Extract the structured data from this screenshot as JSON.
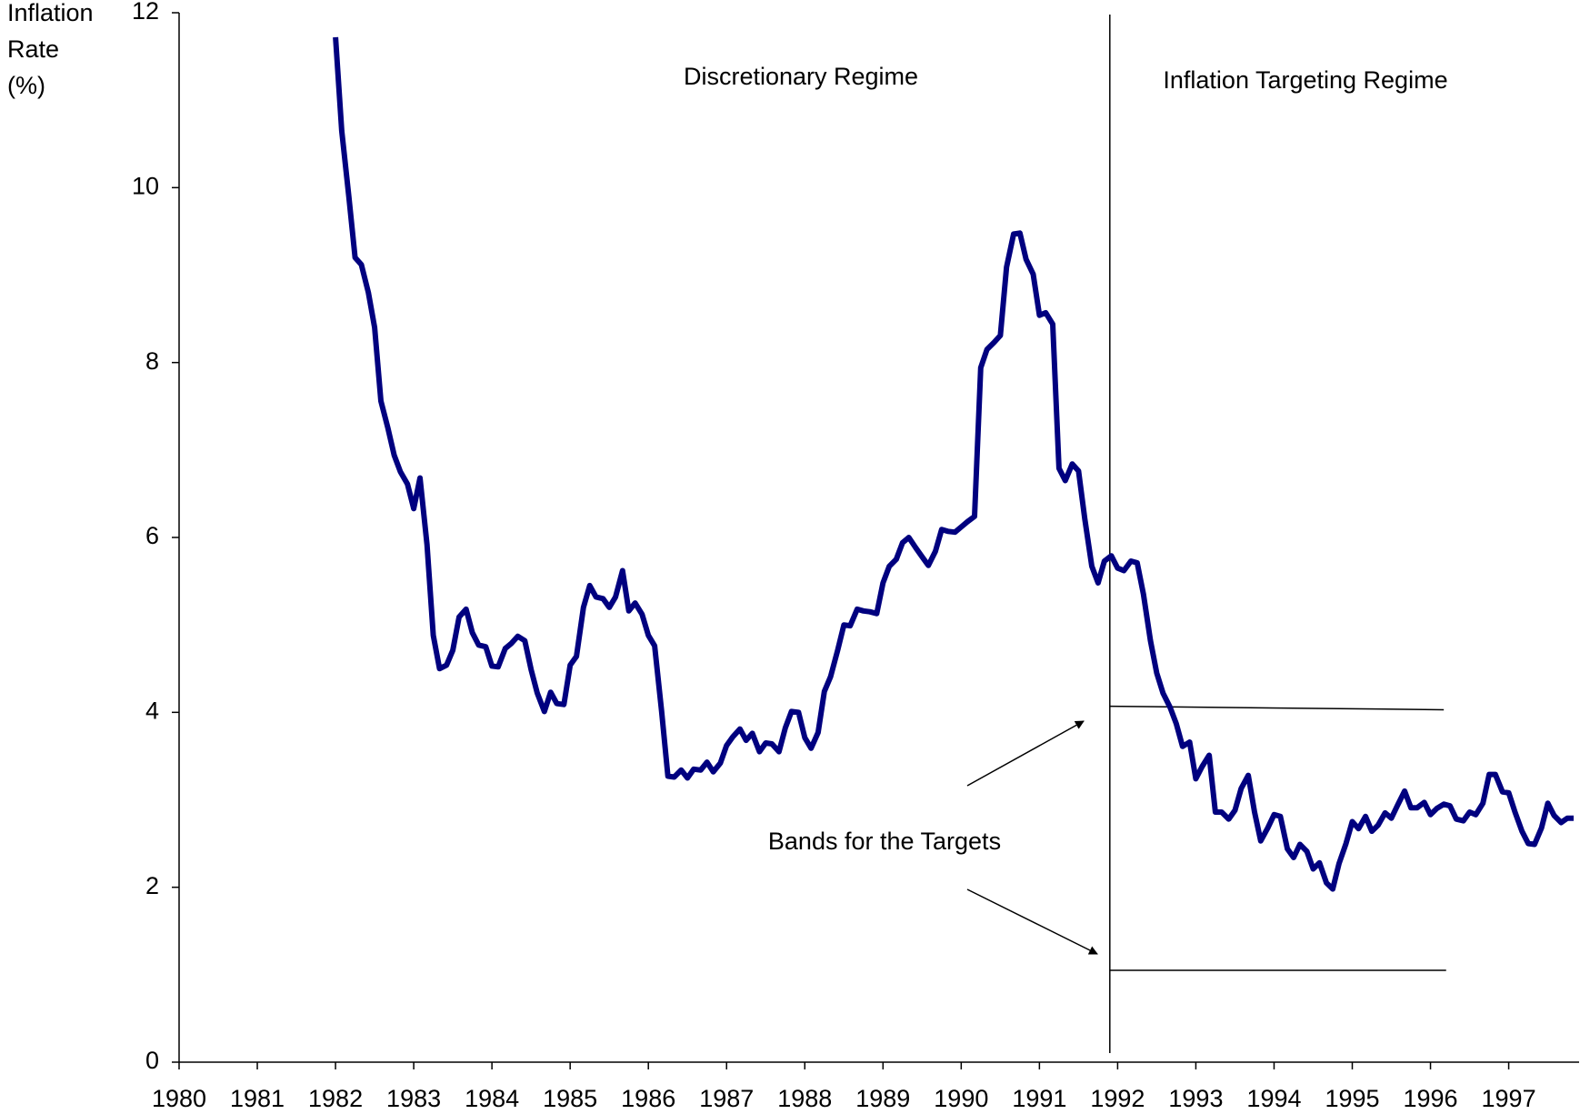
{
  "chart_data": {
    "type": "line",
    "y_label": [
      "Inflation",
      "Rate",
      "(%)"
    ],
    "annotations": [
      "Discretionary Regime",
      "Inflation Targeting Regime",
      "Bands for the Targets"
    ],
    "xlim": [
      1980,
      1997.9
    ],
    "xticks": [
      1980,
      1981,
      1982,
      1983,
      1984,
      1985,
      1986,
      1987,
      1988,
      1989,
      1990,
      1991,
      1992,
      1993,
      1994,
      1995,
      1996,
      1997
    ],
    "ylim": [
      0,
      12
    ],
    "yticks": [
      0,
      2,
      4,
      6,
      8,
      10,
      12
    ],
    "grid": false,
    "regime_break": 1991.9,
    "bands": [
      {
        "x": [
          1991.9,
          1996.17
        ],
        "values": [
          4.07,
          4.03
        ]
      },
      {
        "x": [
          1991.9,
          1996.2
        ],
        "values": [
          1.05,
          1.05
        ]
      }
    ],
    "x": [
      1982.0,
      1982.08,
      1982.17,
      1982.25,
      1982.33,
      1982.42,
      1982.5,
      1982.58,
      1982.67,
      1982.75,
      1982.83,
      1982.92,
      1983.0,
      1983.08,
      1983.17,
      1983.25,
      1983.33,
      1983.42,
      1983.5,
      1983.58,
      1983.67,
      1983.75,
      1983.83,
      1983.92,
      1984.0,
      1984.08,
      1984.17,
      1984.25,
      1984.33,
      1984.42,
      1984.5,
      1984.58,
      1984.67,
      1984.75,
      1984.83,
      1984.92,
      1985.0,
      1985.08,
      1985.17,
      1985.25,
      1985.33,
      1985.42,
      1985.5,
      1985.58,
      1985.67,
      1985.75,
      1985.83,
      1985.92,
      1986.0,
      1986.08,
      1986.17,
      1986.25,
      1986.33,
      1986.42,
      1986.5,
      1986.58,
      1986.67,
      1986.75,
      1986.83,
      1986.92,
      1987.0,
      1987.08,
      1987.17,
      1987.25,
      1987.33,
      1987.42,
      1987.5,
      1987.58,
      1987.67,
      1987.75,
      1987.83,
      1987.92,
      1988.0,
      1988.08,
      1988.17,
      1988.25,
      1988.33,
      1988.42,
      1988.5,
      1988.58,
      1988.67,
      1988.75,
      1988.83,
      1988.92,
      1989.0,
      1989.08,
      1989.17,
      1989.25,
      1989.33,
      1989.42,
      1989.5,
      1989.58,
      1989.67,
      1989.75,
      1989.83,
      1989.92,
      1990.0,
      1990.08,
      1990.17,
      1990.25,
      1990.33,
      1990.42,
      1990.5,
      1990.58,
      1990.67,
      1990.75,
      1990.83,
      1990.92,
      1991.0,
      1991.08,
      1991.17,
      1991.25,
      1991.33,
      1991.42,
      1991.5,
      1991.58,
      1991.67,
      1991.75,
      1991.83,
      1991.92,
      1992.0,
      1992.08,
      1992.17,
      1992.25,
      1992.33,
      1992.42,
      1992.5,
      1992.58,
      1992.67,
      1992.75,
      1992.83,
      1992.92,
      1993.0,
      1993.08,
      1993.17,
      1993.25,
      1993.33,
      1993.42,
      1993.5,
      1993.58,
      1993.67,
      1993.75,
      1993.83,
      1993.92,
      1994.0,
      1994.08,
      1994.17,
      1994.25,
      1994.33,
      1994.42,
      1994.5,
      1994.58,
      1994.67,
      1994.75,
      1994.83,
      1994.92,
      1995.0,
      1995.08,
      1995.17,
      1995.25,
      1995.33,
      1995.42,
      1995.5,
      1995.58,
      1995.67,
      1995.75,
      1995.83,
      1995.92,
      1996.0,
      1996.08,
      1996.17,
      1996.25,
      1996.33,
      1996.42,
      1996.5,
      1996.58,
      1996.67,
      1996.75,
      1996.83,
      1996.92,
      1997.0,
      1997.08,
      1997.17,
      1997.25,
      1997.33,
      1997.42,
      1997.5,
      1997.58,
      1997.67,
      1997.75,
      1997.83
    ],
    "series": [
      {
        "color": "#00007f",
        "values": [
          11.72,
          10.65,
          9.9,
          9.2,
          9.12,
          8.8,
          8.4,
          7.56,
          7.25,
          6.94,
          6.75,
          6.61,
          6.33,
          6.68,
          5.92,
          4.88,
          4.5,
          4.54,
          4.71,
          5.09,
          5.18,
          4.91,
          4.77,
          4.75,
          4.53,
          4.52,
          4.73,
          4.79,
          4.87,
          4.82,
          4.49,
          4.22,
          4.01,
          4.23,
          4.1,
          4.09,
          4.54,
          4.64,
          5.2,
          5.45,
          5.32,
          5.3,
          5.2,
          5.32,
          5.62,
          5.16,
          5.25,
          5.12,
          4.88,
          4.76,
          4.01,
          3.27,
          3.26,
          3.34,
          3.25,
          3.35,
          3.34,
          3.43,
          3.32,
          3.42,
          3.62,
          3.72,
          3.81,
          3.68,
          3.76,
          3.55,
          3.65,
          3.64,
          3.55,
          3.82,
          4.01,
          4.0,
          3.71,
          3.59,
          3.77,
          4.24,
          4.41,
          4.71,
          5.0,
          4.99,
          5.18,
          5.16,
          5.15,
          5.13,
          5.48,
          5.67,
          5.75,
          5.94,
          6.0,
          5.88,
          5.78,
          5.68,
          5.84,
          6.09,
          6.07,
          6.06,
          6.12,
          6.18,
          6.24,
          7.94,
          8.15,
          8.23,
          8.31,
          9.09,
          9.47,
          9.48,
          9.18,
          9.01,
          8.54,
          8.57,
          8.44,
          6.79,
          6.65,
          6.84,
          6.76,
          6.21,
          5.67,
          5.48,
          5.73,
          5.79,
          5.65,
          5.62,
          5.73,
          5.71,
          5.35,
          4.82,
          4.45,
          4.22,
          4.06,
          3.87,
          3.61,
          3.66,
          3.24,
          3.38,
          3.51,
          2.86,
          2.86,
          2.78,
          2.88,
          3.13,
          3.28,
          2.86,
          2.53,
          2.68,
          2.83,
          2.81,
          2.44,
          2.34,
          2.49,
          2.41,
          2.21,
          2.28,
          2.05,
          1.98,
          2.27,
          2.5,
          2.75,
          2.67,
          2.81,
          2.64,
          2.71,
          2.85,
          2.79,
          2.94,
          3.1,
          2.91,
          2.91,
          2.97,
          2.83,
          2.9,
          2.95,
          2.93,
          2.78,
          2.76,
          2.86,
          2.83,
          2.96,
          3.29,
          3.29,
          3.09,
          3.08,
          2.86,
          2.64,
          2.5,
          2.49,
          2.68,
          2.96,
          2.82,
          2.74,
          2.79,
          2.79
        ]
      }
    ]
  }
}
